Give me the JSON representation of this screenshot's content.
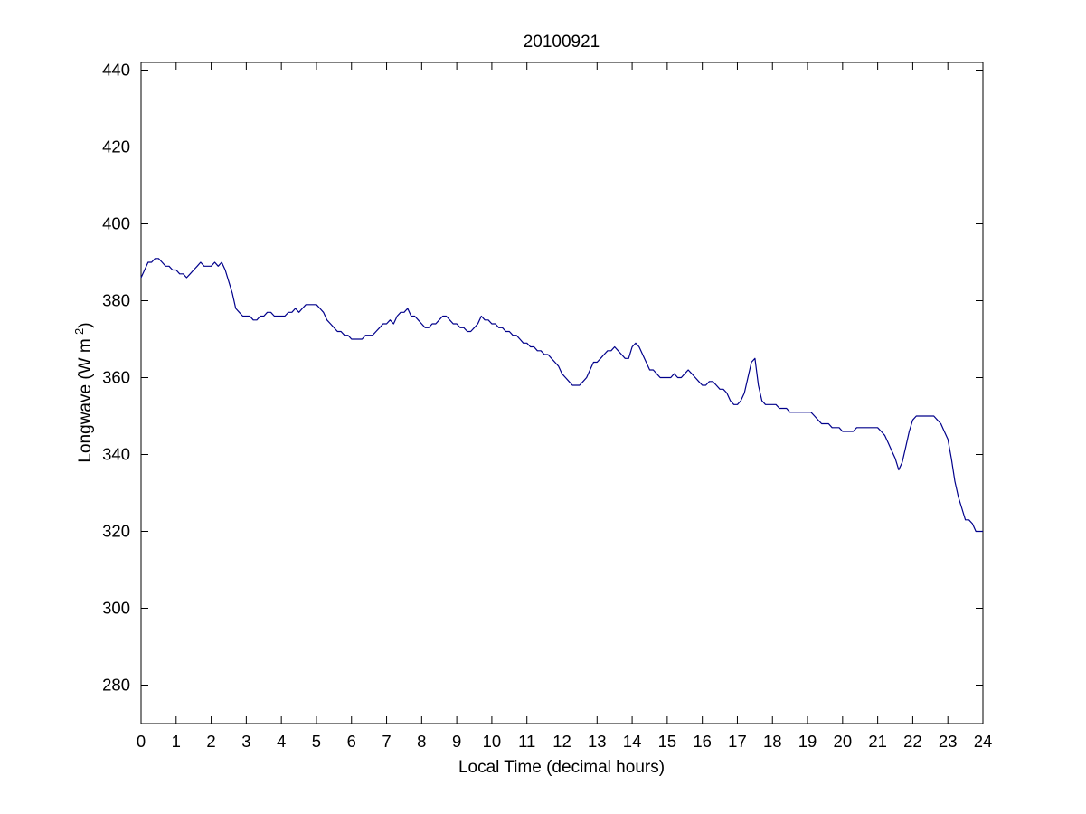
{
  "chart_data": {
    "type": "line",
    "title": "20100921",
    "xlabel": "Local Time (decimal hours)",
    "ylabel": "Longwave (W m",
    "ylabel_superscript": "-2",
    "ylabel_suffix": ")",
    "xlim": [
      0,
      24
    ],
    "ylim": [
      270,
      442
    ],
    "xticks": [
      0,
      1,
      2,
      3,
      4,
      5,
      6,
      7,
      8,
      9,
      10,
      11,
      12,
      13,
      14,
      15,
      16,
      17,
      18,
      19,
      20,
      21,
      22,
      23,
      24
    ],
    "xtick_labels": [
      "0",
      "1",
      "2",
      "3",
      "4",
      "5",
      "6",
      "7",
      "8",
      "9",
      "10",
      "11",
      "12",
      "13",
      "14",
      "15",
      "16",
      "17",
      "18",
      "19",
      "20",
      "21",
      "22",
      "23",
      "24"
    ],
    "yticks": [
      280,
      300,
      320,
      340,
      360,
      380,
      400,
      420,
      440
    ],
    "ytick_labels": [
      "280",
      "300",
      "320",
      "340",
      "360",
      "380",
      "400",
      "420",
      "440"
    ],
    "grid": false,
    "legend": "none",
    "line_color": "#00008b",
    "series": [
      {
        "x": [
          0,
          0.1,
          0.2,
          0.3,
          0.4,
          0.5,
          0.6,
          0.7,
          0.8,
          0.9,
          1.0,
          1.1,
          1.2,
          1.3,
          1.4,
          1.5,
          1.6,
          1.7,
          1.8,
          1.9,
          2.0,
          2.1,
          2.2,
          2.3,
          2.4,
          2.5,
          2.6,
          2.7,
          2.8,
          2.9,
          3.0,
          3.1,
          3.2,
          3.3,
          3.4,
          3.5,
          3.6,
          3.7,
          3.8,
          3.9,
          4.0,
          4.1,
          4.2,
          4.3,
          4.4,
          4.5,
          4.6,
          4.7,
          4.8,
          4.9,
          5.0,
          5.1,
          5.2,
          5.3,
          5.4,
          5.5,
          5.6,
          5.7,
          5.8,
          5.9,
          6.0,
          6.1,
          6.2,
          6.3,
          6.4,
          6.5,
          6.6,
          6.7,
          6.8,
          6.9,
          7.0,
          7.1,
          7.2,
          7.3,
          7.4,
          7.5,
          7.6,
          7.7,
          7.8,
          7.9,
          8.0,
          8.1,
          8.2,
          8.3,
          8.4,
          8.5,
          8.6,
          8.7,
          8.8,
          8.9,
          9.0,
          9.1,
          9.2,
          9.3,
          9.4,
          9.5,
          9.6,
          9.7,
          9.8,
          9.9,
          10.0,
          10.1,
          10.2,
          10.3,
          10.4,
          10.5,
          10.6,
          10.7,
          10.8,
          10.9,
          11.0,
          11.1,
          11.2,
          11.3,
          11.4,
          11.5,
          11.6,
          11.7,
          11.8,
          11.9,
          12.0,
          12.1,
          12.2,
          12.3,
          12.4,
          12.5,
          12.6,
          12.7,
          12.8,
          12.9,
          13.0,
          13.1,
          13.2,
          13.3,
          13.4,
          13.5,
          13.6,
          13.7,
          13.8,
          13.9,
          14.0,
          14.1,
          14.2,
          14.3,
          14.4,
          14.5,
          14.6,
          14.7,
          14.8,
          14.9,
          15.0,
          15.1,
          15.2,
          15.3,
          15.4,
          15.5,
          15.6,
          15.7,
          15.8,
          15.9,
          16.0,
          16.1,
          16.2,
          16.3,
          16.4,
          16.5,
          16.6,
          16.7,
          16.8,
          16.9,
          17.0,
          17.1,
          17.2,
          17.3,
          17.4,
          17.5,
          17.6,
          17.7,
          17.8,
          17.9,
          18.0,
          18.1,
          18.2,
          18.3,
          18.4,
          18.5,
          18.6,
          18.7,
          18.8,
          18.9,
          19.0,
          19.1,
          19.2,
          19.3,
          19.4,
          19.5,
          19.6,
          19.7,
          19.8,
          19.9,
          20.0,
          20.1,
          20.2,
          20.3,
          20.4,
          20.5,
          20.6,
          20.7,
          20.8,
          20.9,
          21.0,
          21.1,
          21.2,
          21.3,
          21.4,
          21.5,
          21.6,
          21.7,
          21.8,
          21.9,
          22.0,
          22.1,
          22.2,
          22.3,
          22.4,
          22.5,
          22.6,
          22.7,
          22.8,
          22.9,
          23.0,
          23.1,
          23.2,
          23.3,
          23.4,
          23.5,
          23.6,
          23.7,
          23.8,
          23.9,
          24.0
        ],
        "y": [
          386,
          388,
          390,
          390,
          391,
          391,
          390,
          389,
          389,
          388,
          388,
          387,
          387,
          386,
          387,
          388,
          389,
          390,
          389,
          389,
          389,
          390,
          389,
          390,
          388,
          385,
          382,
          378,
          377,
          376,
          376,
          376,
          375,
          375,
          376,
          376,
          377,
          377,
          376,
          376,
          376,
          376,
          377,
          377,
          378,
          377,
          378,
          379,
          379,
          379,
          379,
          378,
          377,
          375,
          374,
          373,
          372,
          372,
          371,
          371,
          370,
          370,
          370,
          370,
          371,
          371,
          371,
          372,
          373,
          374,
          374,
          375,
          374,
          376,
          377,
          377,
          378,
          376,
          376,
          375,
          374,
          373,
          373,
          374,
          374,
          375,
          376,
          376,
          375,
          374,
          374,
          373,
          373,
          372,
          372,
          373,
          374,
          376,
          375,
          375,
          374,
          374,
          373,
          373,
          372,
          372,
          371,
          371,
          370,
          369,
          369,
          368,
          368,
          367,
          367,
          366,
          366,
          365,
          364,
          363,
          361,
          360,
          359,
          358,
          358,
          358,
          359,
          360,
          362,
          364,
          364,
          365,
          366,
          367,
          367,
          368,
          367,
          366,
          365,
          365,
          368,
          369,
          368,
          366,
          364,
          362,
          362,
          361,
          360,
          360,
          360,
          360,
          361,
          360,
          360,
          361,
          362,
          361,
          360,
          359,
          358,
          358,
          359,
          359,
          358,
          357,
          357,
          356,
          354,
          353,
          353,
          354,
          356,
          360,
          364,
          365,
          358,
          354,
          353,
          353,
          353,
          353,
          352,
          352,
          352,
          351,
          351,
          351,
          351,
          351,
          351,
          351,
          350,
          349,
          348,
          348,
          348,
          347,
          347,
          347,
          346,
          346,
          346,
          346,
          347,
          347,
          347,
          347,
          347,
          347,
          347,
          346,
          345,
          343,
          341,
          339,
          336,
          338,
          342,
          346,
          349,
          350,
          350,
          350,
          350,
          350,
          350,
          349,
          348,
          346,
          344,
          339,
          333,
          329,
          326,
          323,
          323,
          322,
          320,
          320,
          320
        ]
      }
    ]
  }
}
